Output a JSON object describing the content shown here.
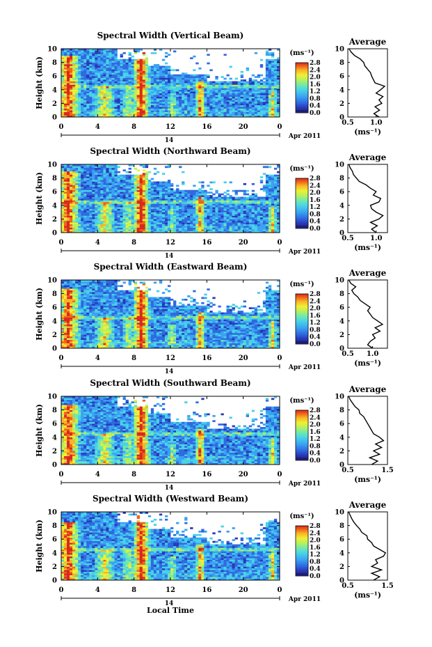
{
  "figure": {
    "xlabel": "Local Time",
    "date_label": "Apr 2011",
    "unit_label": "(ms⁻¹)",
    "average_title": "Average",
    "average_xlabel": "(ms⁻¹)",
    "colorbar_ticks": [
      "2.8",
      "2.4",
      "2.0",
      "1.6",
      "1.2",
      "0.8",
      "0.4",
      "0.0"
    ],
    "colors": {
      "scale": [
        "#1e1e6e",
        "#2838b8",
        "#2f6ae0",
        "#3aa2f2",
        "#48d2e8",
        "#6ee8b0",
        "#b4f062",
        "#f0f032",
        "#f8b428",
        "#f06418",
        "#d82820"
      ]
    }
  },
  "chart_data": [
    {
      "type": "heatmap",
      "title": "Spectral Width (Vertical Beam)",
      "ylabel": "Height (km)",
      "xlabel": "",
      "x_ticks": [
        "0",
        "4",
        "8",
        "12",
        "16",
        "20",
        "0"
      ],
      "y_ticks": [
        "0",
        "2",
        "4",
        "6",
        "8",
        "10"
      ],
      "xlim": [
        0,
        24
      ],
      "ylim": [
        0,
        10
      ],
      "date_tick": "14",
      "colorbar": {
        "min": 0.0,
        "max": 2.8,
        "unit": "(ms⁻¹)"
      },
      "average_profile": {
        "xlim": [
          0.5,
          1.2
        ],
        "x_ticks": [
          "0.5",
          "1.0"
        ],
        "height": [
          0.0,
          0.5,
          1.0,
          1.5,
          2.0,
          2.5,
          3.0,
          3.5,
          4.0,
          4.5,
          5.0,
          5.5,
          6.0,
          6.5,
          7.0,
          7.5,
          8.0,
          8.5,
          9.0,
          9.5,
          10.0
        ],
        "values": [
          1.05,
          0.96,
          1.06,
          0.98,
          1.1,
          1.05,
          1.12,
          1.0,
          1.08,
          1.15,
          0.98,
          0.95,
          0.92,
          0.9,
          0.85,
          0.8,
          0.78,
          0.72,
          0.62,
          0.56,
          0.52
        ]
      }
    },
    {
      "type": "heatmap",
      "title": "Spectral Width (Northward Beam)",
      "ylabel": "Height (km)",
      "xlabel": "",
      "x_ticks": [
        "0",
        "4",
        "8",
        "12",
        "16",
        "20",
        "0"
      ],
      "y_ticks": [
        "0",
        "2",
        "4",
        "6",
        "8",
        "10"
      ],
      "xlim": [
        0,
        24
      ],
      "ylim": [
        0,
        10
      ],
      "date_tick": "14",
      "colorbar": {
        "min": 0.0,
        "max": 2.8,
        "unit": "(ms⁻¹)"
      },
      "average_profile": {
        "xlim": [
          0.5,
          1.2
        ],
        "x_ticks": [
          "0.5",
          "1.0"
        ],
        "height": [
          0.0,
          0.5,
          1.0,
          1.5,
          2.0,
          2.5,
          3.0,
          3.5,
          4.0,
          4.5,
          5.0,
          5.5,
          6.0,
          6.5,
          7.0,
          7.5,
          8.0,
          8.5,
          9.0,
          9.5,
          10.0
        ],
        "values": [
          1.0,
          0.92,
          1.02,
          0.9,
          1.05,
          1.12,
          1.0,
          0.92,
          0.9,
          1.05,
          1.08,
          0.95,
          1.0,
          0.9,
          0.82,
          0.7,
          0.65,
          0.6,
          0.58,
          0.54,
          0.52
        ]
      }
    },
    {
      "type": "heatmap",
      "title": "Spectral Width (Eastward Beam)",
      "ylabel": "Height (km)",
      "xlabel": "",
      "x_ticks": [
        "0",
        "4",
        "8",
        "12",
        "16",
        "20",
        "0"
      ],
      "y_ticks": [
        "0",
        "2",
        "4",
        "6",
        "8",
        "10"
      ],
      "xlim": [
        0,
        24
      ],
      "ylim": [
        0,
        10
      ],
      "date_tick": "14",
      "colorbar": {
        "min": 0.0,
        "max": 2.8,
        "unit": "(ms⁻¹)"
      },
      "average_profile": {
        "xlim": [
          0.5,
          1.3
        ],
        "x_ticks": [
          "0.5",
          "1.0"
        ],
        "height": [
          0.0,
          0.5,
          1.0,
          1.5,
          2.0,
          2.5,
          3.0,
          3.5,
          4.0,
          4.5,
          5.0,
          5.5,
          6.0,
          6.5,
          7.0,
          7.5,
          8.0,
          8.5,
          9.0,
          9.5,
          10.0
        ],
        "values": [
          1.0,
          0.9,
          0.95,
          1.05,
          1.0,
          1.15,
          1.05,
          1.2,
          1.1,
          1.0,
          0.95,
          0.9,
          0.95,
          0.85,
          0.75,
          0.7,
          0.62,
          0.58,
          0.66,
          0.56,
          0.52
        ]
      }
    },
    {
      "type": "heatmap",
      "title": "Spectral Width (Southward Beam)",
      "ylabel": "Height (km)",
      "xlabel": "",
      "x_ticks": [
        "0",
        "4",
        "8",
        "12",
        "16",
        "20",
        "0"
      ],
      "y_ticks": [
        "0",
        "2",
        "4",
        "6",
        "8",
        "10"
      ],
      "xlim": [
        0,
        24
      ],
      "ylim": [
        0,
        10
      ],
      "date_tick": "14",
      "colorbar": {
        "min": 0.0,
        "max": 2.8,
        "unit": "(ms⁻¹)"
      },
      "average_profile": {
        "xlim": [
          0.5,
          1.5
        ],
        "x_ticks": [
          "0.5",
          "1.5"
        ],
        "height": [
          0.0,
          0.5,
          1.0,
          1.5,
          2.0,
          2.5,
          3.0,
          3.5,
          4.0,
          4.5,
          5.0,
          5.5,
          6.0,
          6.5,
          7.0,
          7.5,
          8.0,
          8.5,
          9.0,
          9.5,
          10.0
        ],
        "values": [
          1.1,
          1.25,
          1.05,
          1.3,
          1.15,
          1.35,
          1.2,
          1.4,
          1.3,
          1.15,
          1.1,
          1.05,
          1.0,
          0.95,
          0.9,
          0.8,
          0.78,
          0.68,
          0.62,
          0.56,
          0.52
        ]
      }
    },
    {
      "type": "heatmap",
      "title": "Spectral Width (Westward Beam)",
      "ylabel": "Height (km)",
      "xlabel": "Local Time",
      "x_ticks": [
        "0",
        "4",
        "8",
        "12",
        "16",
        "20",
        "0"
      ],
      "y_ticks": [
        "0",
        "2",
        "4",
        "6",
        "8",
        "10"
      ],
      "xlim": [
        0,
        24
      ],
      "ylim": [
        0,
        10
      ],
      "date_tick": "14",
      "colorbar": {
        "min": 0.0,
        "max": 2.8,
        "unit": "(ms⁻¹)"
      },
      "average_profile": {
        "xlim": [
          0.5,
          1.5
        ],
        "x_ticks": [
          "0.5",
          "1.5"
        ],
        "height": [
          0.0,
          0.5,
          1.0,
          1.5,
          2.0,
          2.5,
          3.0,
          3.5,
          4.0,
          4.5,
          5.0,
          5.5,
          6.0,
          6.5,
          7.0,
          7.5,
          8.0,
          8.5,
          9.0,
          9.5,
          10.0
        ],
        "values": [
          1.15,
          1.3,
          1.1,
          1.35,
          1.1,
          1.25,
          1.2,
          1.4,
          1.45,
          1.3,
          1.15,
          1.1,
          1.0,
          0.98,
          0.85,
          0.8,
          0.72,
          0.65,
          0.6,
          0.56,
          0.52
        ]
      }
    }
  ]
}
